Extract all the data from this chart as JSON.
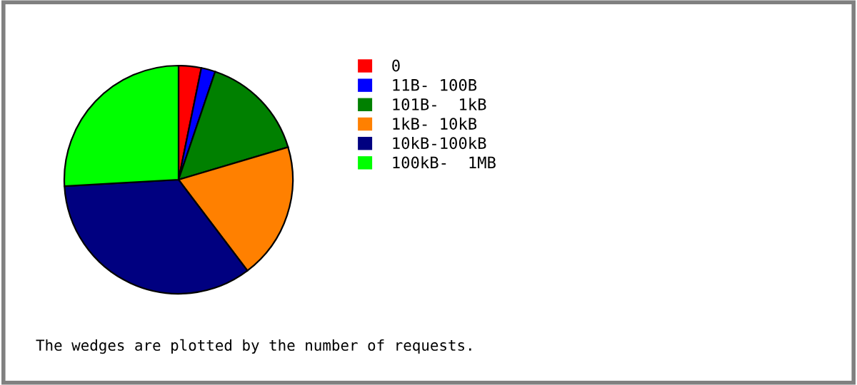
{
  "chart_data": {
    "type": "pie",
    "categories": [
      "0",
      "11B- 100B",
      "101B-  1kB",
      "1kB- 10kB",
      "10kB-100kB",
      "100kB-  1MB"
    ],
    "values": [
      3.2,
      2.0,
      15.2,
      19.3,
      34.4,
      25.9
    ],
    "colors": [
      "#ff0000",
      "#0000ff",
      "#008000",
      "#ff8000",
      "#000080",
      "#00ff00"
    ],
    "legend": "right",
    "annotations": [
      "The wedges are plotted by the number of requests."
    ]
  }
}
